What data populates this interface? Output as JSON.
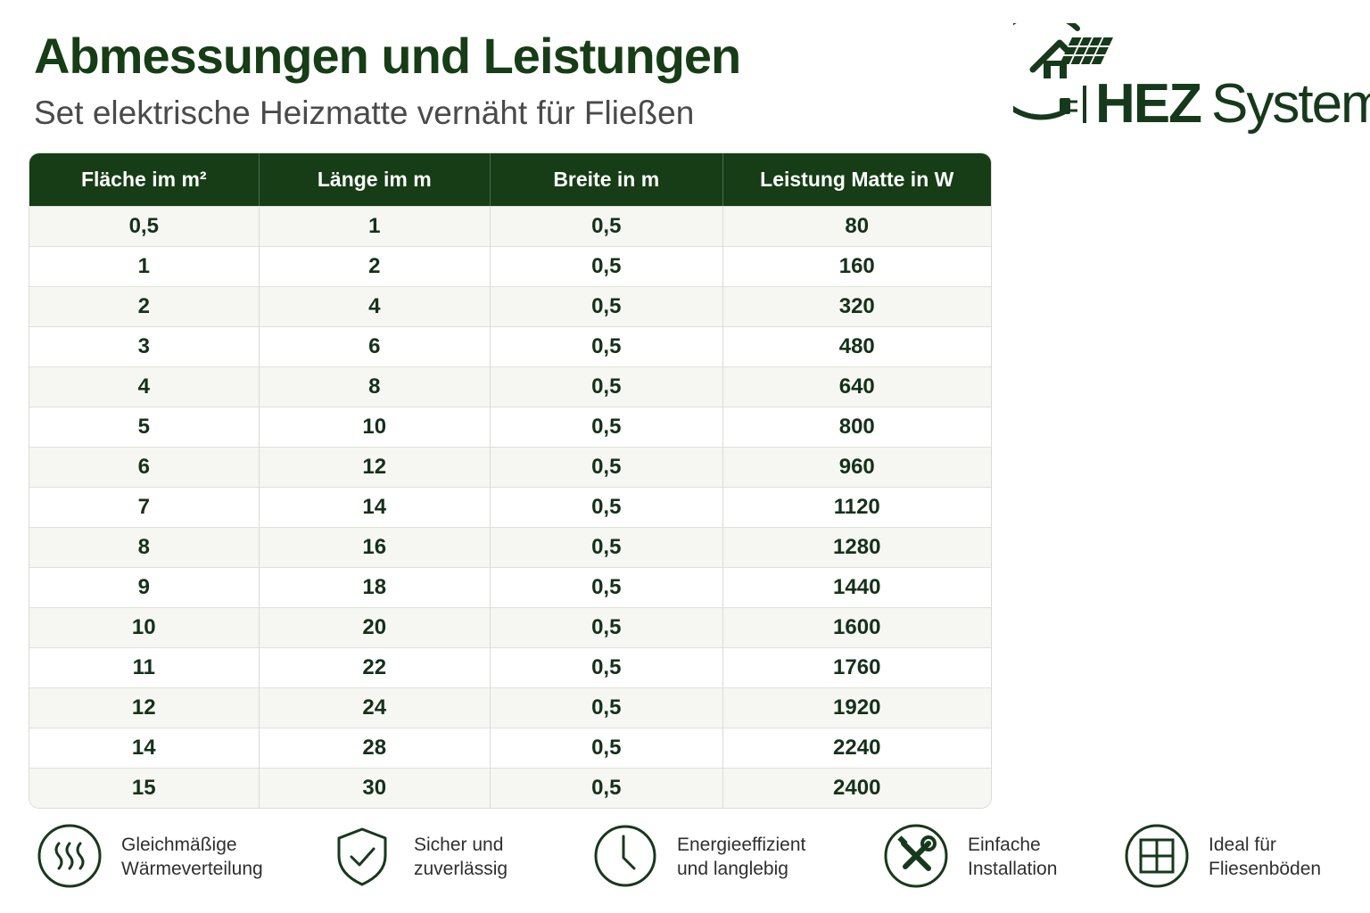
{
  "header": {
    "title": "Abmessungen und Leistungen",
    "subtitle": "Set elektrische Heizmatte vernäht für Fließen"
  },
  "logo": {
    "brand_bold": "HEZ",
    "brand_light": "Systeme",
    "icon": "house-solar-plug-icon"
  },
  "table": {
    "headers": [
      "Fläche im m²",
      "Länge im m",
      "Breite in m",
      "Leistung Matte in W"
    ],
    "rows": [
      [
        "0,5",
        "1",
        "0,5",
        "80"
      ],
      [
        "1",
        "2",
        "0,5",
        "160"
      ],
      [
        "2",
        "4",
        "0,5",
        "320"
      ],
      [
        "3",
        "6",
        "0,5",
        "480"
      ],
      [
        "4",
        "8",
        "0,5",
        "640"
      ],
      [
        "5",
        "10",
        "0,5",
        "800"
      ],
      [
        "6",
        "12",
        "0,5",
        "960"
      ],
      [
        "7",
        "14",
        "0,5",
        "1120"
      ],
      [
        "8",
        "16",
        "0,5",
        "1280"
      ],
      [
        "9",
        "18",
        "0,5",
        "1440"
      ],
      [
        "10",
        "20",
        "0,5",
        "1600"
      ],
      [
        "11",
        "22",
        "0,5",
        "1760"
      ],
      [
        "12",
        "24",
        "0,5",
        "1920"
      ],
      [
        "14",
        "28",
        "0,5",
        "2240"
      ],
      [
        "15",
        "30",
        "0,5",
        "2400"
      ]
    ]
  },
  "features": [
    {
      "line1": "Gleichmäßige",
      "line2": "Wärmeverteilung",
      "icon": "heat-waves-icon"
    },
    {
      "line1": "Sicher und",
      "line2": "zuverlässig",
      "icon": "shield-check-icon"
    },
    {
      "line1": "Energieeffizient",
      "line2": "und langlebig",
      "icon": "clock-icon"
    },
    {
      "line1": "Einfache",
      "line2": "Installation",
      "icon": "tools-icon"
    },
    {
      "line1": "Ideal für",
      "line2": "Fliesenböden",
      "icon": "tiles-icon"
    }
  ],
  "colors": {
    "brand_green": "#163d16",
    "row_alt": "#f6f7f2"
  }
}
